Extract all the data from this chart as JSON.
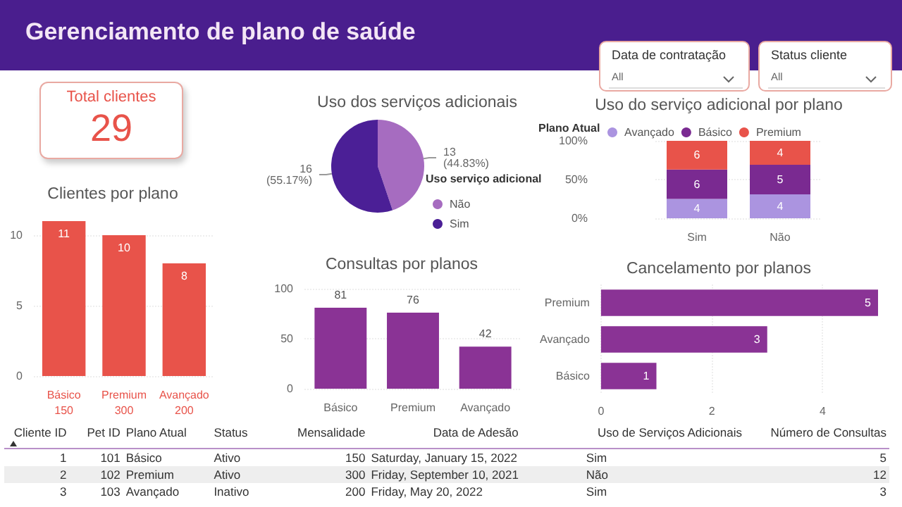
{
  "chart_data": [
    {
      "type": "other",
      "title": "Gerenciamento de plano de saúde",
      "annotations": [
        "Data de contratação",
        "All",
        "Status cliente",
        "All"
      ]
    },
    {
      "type": "other",
      "title": "Total clientes",
      "annotations": [
        "29"
      ]
    },
    {
      "type": "pie",
      "title": "Uso dos serviços adicionais",
      "categories": [
        "Não",
        "Sim"
      ],
      "values": [
        13,
        16
      ],
      "colors": [
        "#a66cc0",
        "#4b1f96"
      ],
      "value_labels": [
        "13\n(44.83%)",
        "16\n(55.17%)"
      ],
      "legend_title": "Uso serviço adicional",
      "legend": "right"
    },
    {
      "type": "bar",
      "title": "Uso do serviço adicional por plano",
      "categories": [
        "Sim",
        "Não"
      ],
      "stacked": true,
      "legend": "top left",
      "legend_title": "Plano Atual",
      "ylim": [
        0,
        100
      ],
      "yticks": [
        {
          "value": 0,
          "label": "0%"
        },
        {
          "value": 50,
          "label": "50%"
        },
        {
          "value": 100,
          "label": "100%"
        }
      ],
      "grid": "y",
      "series": [
        {
          "name": "Avançado",
          "color": "#ab94e0",
          "values": [
            25,
            31
          ]
        },
        {
          "name": "Básico",
          "color": "#7a2a91",
          "values": [
            38,
            38
          ]
        },
        {
          "name": "Premium",
          "color": "#e8534a",
          "values": [
            37,
            31
          ]
        }
      ],
      "annotations": [
        "4",
        "6",
        "6",
        "4",
        "5",
        "4"
      ]
    },
    {
      "type": "bar",
      "title": "Clientes por plano",
      "categories": [
        "Básico\n150",
        "Premium\n300",
        "Avançado\n200"
      ],
      "values": [
        11,
        10,
        8
      ],
      "color": "#e8534a",
      "ylim": [
        0,
        11
      ],
      "yticks": [
        0,
        5,
        10
      ],
      "grid": "y",
      "data_labels": true
    },
    {
      "type": "bar",
      "title": "Consultas por planos",
      "categories": [
        "Básico",
        "Premium",
        "Avançado"
      ],
      "values": [
        81,
        76,
        42
      ],
      "color": "#8a3395",
      "ylim": [
        0,
        100
      ],
      "yticks": [
        0,
        50,
        100
      ],
      "grid": "y",
      "data_labels": true
    },
    {
      "type": "bar",
      "title": "Cancelamento por planos",
      "orientation": "horizontal",
      "categories": [
        "Premium",
        "Avançado",
        "Básico"
      ],
      "values": [
        5,
        3,
        1
      ],
      "color": "#8a3395",
      "xlim": [
        0,
        5
      ],
      "xticks": [
        0,
        2,
        4
      ],
      "grid": "x",
      "data_labels": true
    },
    {
      "type": "other",
      "categories": [
        "Cliente ID",
        "Pet ID",
        "Plano Atual",
        "Status",
        "Mensalidade",
        "Data de Adesão",
        "Uso de Serviços Adicionais",
        "Número de Consultas"
      ],
      "cell_labels": [
        [
          "1",
          "101",
          "Básico",
          "Ativo",
          "150",
          "Saturday, January 15, 2022",
          "Sim",
          "5"
        ],
        [
          "2",
          "102",
          "Premium",
          "Ativo",
          "300",
          "Friday, September 10, 2021",
          "Não",
          "12"
        ],
        [
          "3",
          "103",
          "Avançado",
          "Inativo",
          "200",
          "Friday, May 20, 2022",
          "Sim",
          "3"
        ]
      ]
    }
  ]
}
